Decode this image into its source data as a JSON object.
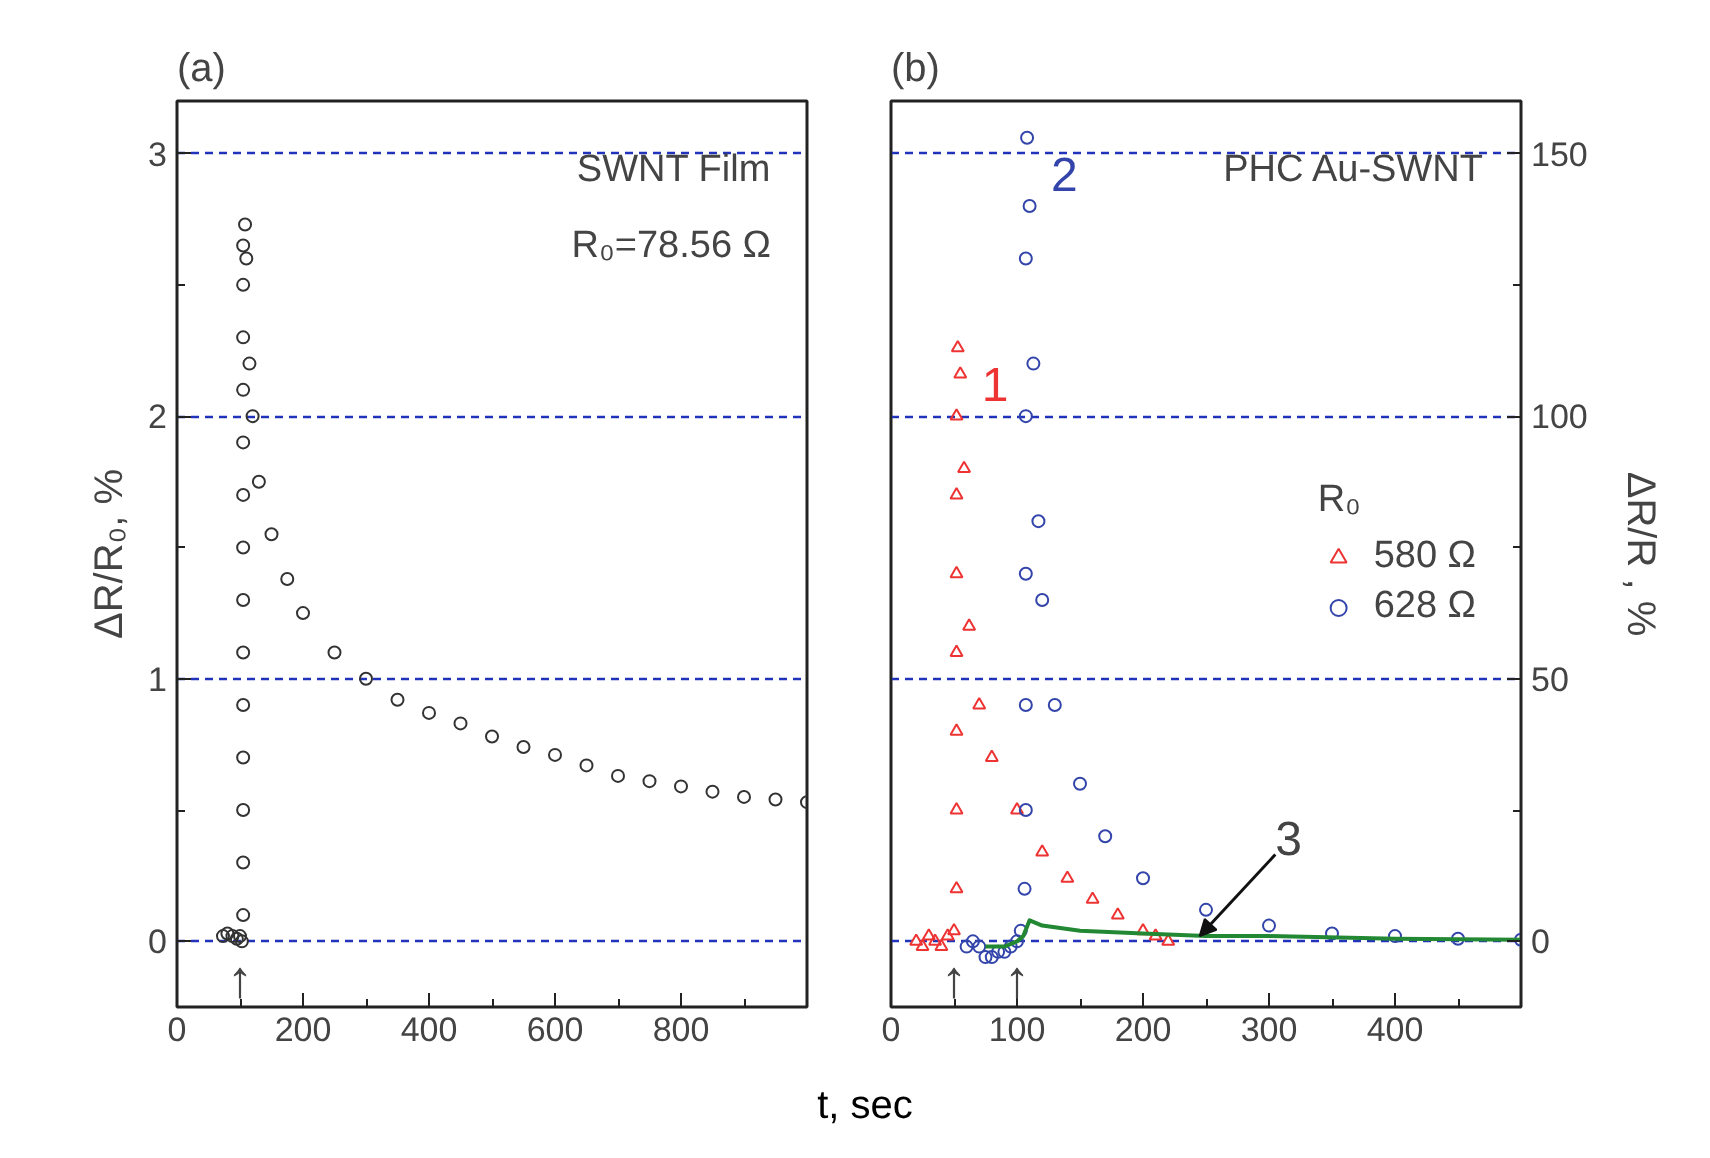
{
  "chart_data": [
    {
      "type": "scatter",
      "title": "(a)",
      "xlabel": "t, sec",
      "ylabel": "ΔR/R₀, %",
      "xlim": [
        0,
        1000
      ],
      "xticks": [
        0,
        200,
        400,
        600,
        800
      ],
      "ylim": [
        -0.25,
        3.2
      ],
      "yticks": [
        0,
        1,
        2,
        3
      ],
      "grid": "y",
      "marker": "circle",
      "legend": false,
      "series": [
        {
          "color": "#333333",
          "x": [
            73,
            80,
            88,
            95,
            100,
            103,
            105,
            105,
            105,
            105,
            105,
            105,
            105,
            105,
            105,
            105,
            105,
            105,
            105,
            105,
            108,
            110,
            115,
            120,
            130,
            150,
            175,
            200,
            250,
            300,
            350,
            400,
            450,
            500,
            550,
            600,
            650,
            700,
            750,
            800,
            850,
            900,
            950,
            1000
          ],
          "values": [
            0.02,
            0.03,
            0.02,
            0.01,
            0.02,
            0.0,
            0.1,
            0.3,
            0.5,
            0.7,
            0.9,
            1.1,
            1.3,
            1.5,
            1.7,
            1.9,
            2.1,
            2.3,
            2.5,
            2.65,
            2.73,
            2.6,
            2.2,
            2.0,
            1.75,
            1.55,
            1.38,
            1.25,
            1.1,
            1.0,
            0.92,
            0.87,
            0.83,
            0.78,
            0.74,
            0.71,
            0.67,
            0.63,
            0.61,
            0.59,
            0.57,
            0.55,
            0.54,
            0.53
          ]
        }
      ],
      "annotations": [
        "SWNT Film",
        "R₀=78.56 Ω",
        {
          "text": "↑",
          "x": 100,
          "y": 0
        }
      ]
    },
    {
      "type": "scatter",
      "title": "(b)",
      "ylabel": "ΔR/R , %",
      "legend_title": "R₀",
      "xlim": [
        0,
        500
      ],
      "xticks": [
        0,
        100,
        200,
        300,
        400
      ],
      "ylim": [
        -12.5,
        160
      ],
      "yticks": [
        0,
        50,
        100,
        150
      ],
      "grid": "y",
      "legend": "right",
      "series": [
        {
          "name": "580 Ω",
          "color": "#ee3333",
          "marker": "triangle",
          "x": [
            20,
            25,
            30,
            35,
            40,
            45,
            50,
            52,
            52,
            52,
            52,
            52,
            52,
            52,
            53,
            55,
            58,
            62,
            70,
            80,
            100,
            120,
            140,
            160,
            180,
            200,
            210,
            220
          ],
          "values": [
            0,
            -1,
            1,
            0,
            -1,
            1,
            2,
            10,
            25,
            40,
            55,
            70,
            85,
            100,
            113,
            108,
            90,
            60,
            45,
            35,
            25,
            17,
            12,
            8,
            5,
            2,
            1,
            0
          ]
        },
        {
          "name": "628 Ω",
          "color": "#3344aa",
          "marker": "circle",
          "x": [
            60,
            65,
            70,
            75,
            80,
            85,
            90,
            95,
            100,
            103,
            106,
            107,
            107,
            107,
            107,
            107,
            108,
            110,
            113,
            117,
            120,
            130,
            150,
            170,
            200,
            250,
            300,
            350,
            400,
            450,
            500
          ],
          "values": [
            -1,
            0,
            -1,
            -3,
            -3,
            -2,
            -2,
            -1,
            0,
            2,
            10,
            25,
            45,
            70,
            100,
            130,
            153,
            140,
            110,
            80,
            65,
            45,
            30,
            20,
            12,
            6,
            3,
            1.5,
            1,
            0.5,
            0.3
          ]
        },
        {
          "type": "line",
          "color": "#228833",
          "marker": "none",
          "x": [
            75,
            90,
            100,
            105,
            110,
            120,
            150,
            200,
            250,
            300,
            400,
            500
          ],
          "values": [
            -1,
            -1,
            0,
            1,
            4,
            3,
            2,
            1.5,
            1,
            1,
            0.5,
            0.3
          ]
        }
      ],
      "annotations": [
        "PHC Au-SWNT",
        {
          "text": "1",
          "x": 53,
          "y": 113
        },
        {
          "text": "2",
          "x": 108,
          "y": 153
        },
        {
          "text": "3",
          "x": 245,
          "y": 1
        },
        {
          "text": "↑",
          "x": 50,
          "y": 0
        },
        {
          "text": "↑",
          "x": 100,
          "y": 0
        }
      ]
    }
  ]
}
